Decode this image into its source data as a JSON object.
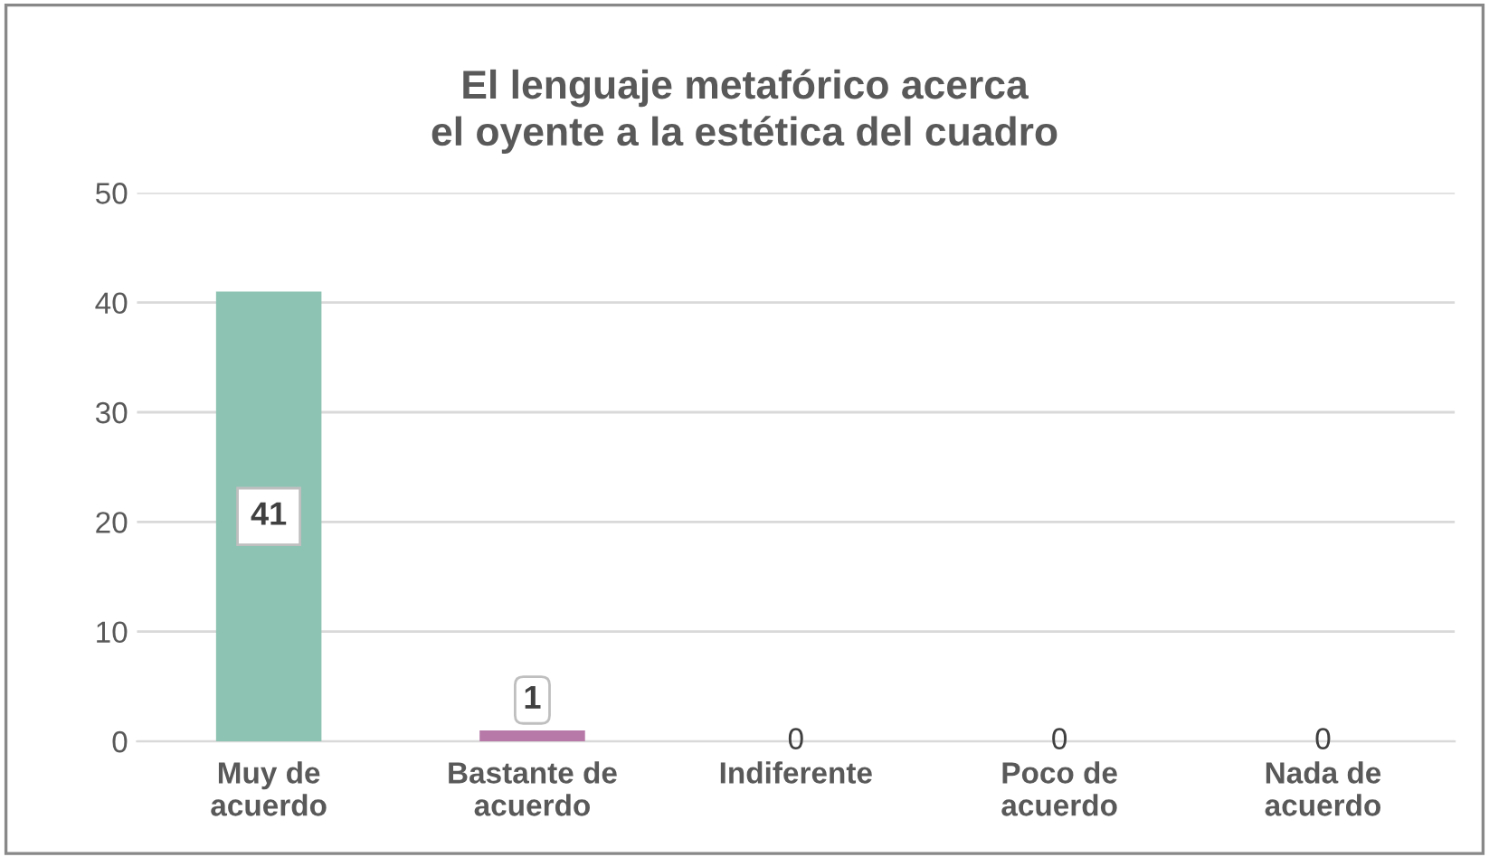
{
  "chart_data": {
    "type": "bar",
    "title": "El lenguaje metafórico acerca\nel oyente a la estética del cuadro",
    "categories": [
      "Muy de\nacuerdo",
      "Bastante de\nacuerdo",
      "Indiferente",
      "Poco de\nacuerdo",
      "Nada de\nacuerdo"
    ],
    "values": [
      41,
      1,
      0,
      0,
      0
    ],
    "colors": [
      "#8dc3b2",
      "#b77aa8",
      "#9dc3e6",
      "#f4b183",
      "#a9d18e"
    ],
    "ylim": [
      0,
      50
    ],
    "yticks": [
      0,
      10,
      20,
      30,
      40,
      50
    ],
    "grid": "y",
    "data_labels": true,
    "legend": false
  }
}
